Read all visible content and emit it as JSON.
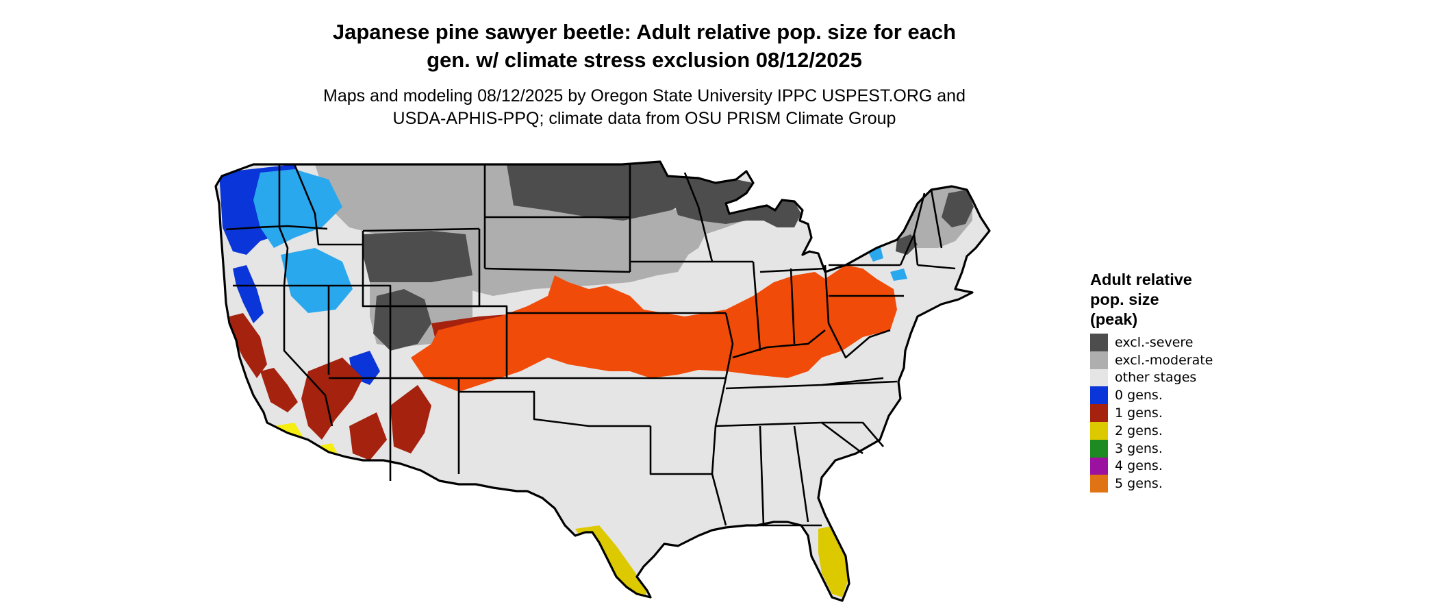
{
  "title_lines": [
    "Japanese pine sawyer beetle: Adult relative pop. size for each",
    "gen. w/ climate stress exclusion 08/12/2025"
  ],
  "subtitle_lines": [
    "Maps and modeling 08/12/2025 by Oregon State University IPPC USPEST.ORG and",
    "USDA-APHIS-PPQ; climate data from OSU PRISM Climate Group"
  ],
  "legend": {
    "title_lines": [
      "Adult relative",
      "pop. size",
      "(peak)"
    ],
    "items": [
      {
        "label": "excl.-severe",
        "color": "#4d4d4d"
      },
      {
        "label": "excl.-moderate",
        "color": "#aeaeae"
      },
      {
        "label": "other stages",
        "color": "#e5e5e5"
      },
      {
        "label": "0 gens.",
        "color": "#0a35d8"
      },
      {
        "label": "1 gens.",
        "color": "#a5220e"
      },
      {
        "label": "2 gens.",
        "color": "#dcc900"
      },
      {
        "label": "3 gens.",
        "color": "#1e8a22"
      },
      {
        "label": "4 gens.",
        "color": "#9c12a0"
      },
      {
        "label": "5 gens.",
        "color": "#e07414"
      }
    ]
  },
  "map_colors": {
    "severe": "#4d4d4d",
    "moderate": "#aeaeae",
    "other": "#e5e5e5",
    "gen0": "#0a35d8",
    "gen0_light": "#2aa8ee",
    "gen1": "#a5220e",
    "gen1_orange": "#f04b08",
    "gen2": "#dcc900",
    "gen2_light": "#f6ee10",
    "border": "#000000"
  }
}
